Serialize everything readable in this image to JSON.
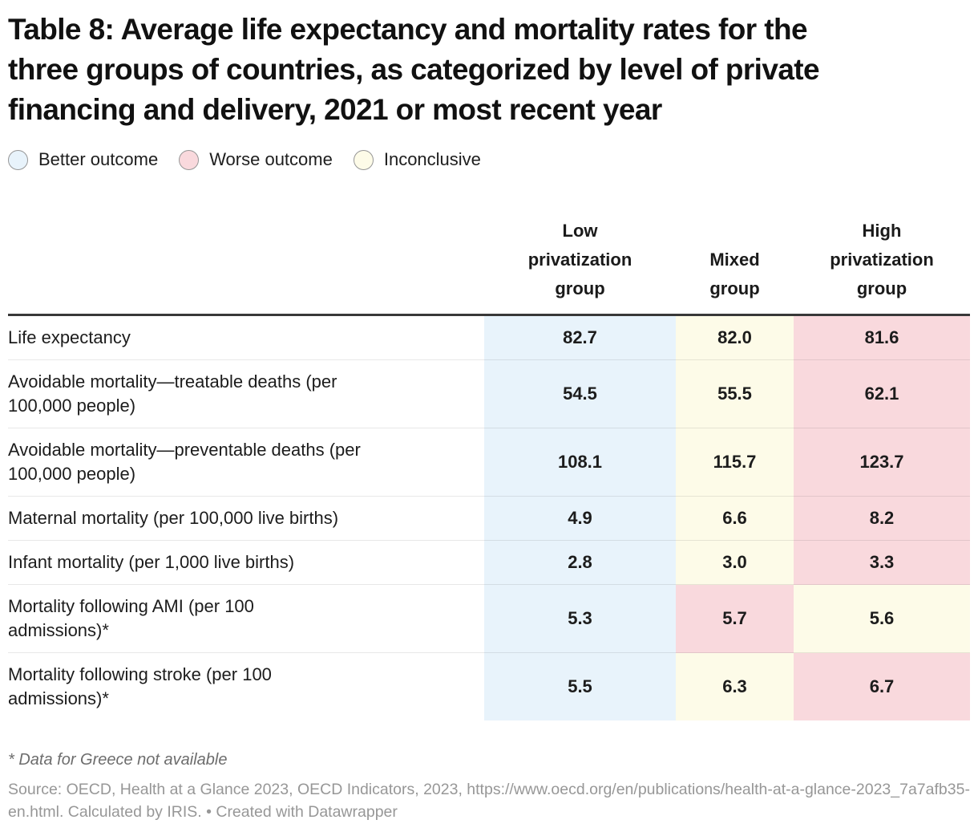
{
  "colors": {
    "better": "#e8f3fb",
    "worse": "#f9d9dd",
    "inconclusive": "#fdfbe8",
    "legend_swatch_border": "#969696",
    "header_rule": "#383838"
  },
  "legend": {
    "items": [
      {
        "key": "better",
        "label": "Better outcome"
      },
      {
        "key": "worse",
        "label": "Worse outcome"
      },
      {
        "key": "inconclusive",
        "label": "Inconclusive"
      }
    ]
  },
  "chart_data": {
    "type": "table",
    "title": "Table 8: Average life expectancy and mortality rates for the three groups of countries, as categorized by level of private financing and delivery, 2021 or most recent year",
    "title_display": "Table 8: Average life expectancy and mortality rates for the\nthree groups of countries, as categorized by level of private\nfinancing and delivery, 2021 or most recent year",
    "columns": [
      "Low privatization group",
      "Mixed group",
      "High privatization group"
    ],
    "columns_display": [
      "Low\nprivatization\ngroup",
      "Mixed\ngroup",
      "High\nprivatization\ngroup"
    ],
    "legend_meaning": {
      "better": "Better outcome",
      "worse": "Worse outcome",
      "inconclusive": "Inconclusive"
    },
    "rows": [
      {
        "label": "Life expectancy",
        "label_display": "Life expectancy",
        "values": [
          82.7,
          82.0,
          81.6
        ],
        "display": [
          "82.7",
          "82.0",
          "81.6"
        ],
        "outcomes": [
          "better",
          "inconclusive",
          "worse"
        ]
      },
      {
        "label": "Avoidable mortality—treatable deaths (per 100,000 people)",
        "label_display": "Avoidable mortality—treatable deaths (per\n100,000 people)",
        "values": [
          54.5,
          55.5,
          62.1
        ],
        "display": [
          "54.5",
          "55.5",
          "62.1"
        ],
        "outcomes": [
          "better",
          "inconclusive",
          "worse"
        ]
      },
      {
        "label": "Avoidable mortality—preventable deaths (per 100,000 people)",
        "label_display": "Avoidable mortality—preventable deaths (per\n100,000 people)",
        "values": [
          108.1,
          115.7,
          123.7
        ],
        "display": [
          "108.1",
          "115.7",
          "123.7"
        ],
        "outcomes": [
          "better",
          "inconclusive",
          "worse"
        ]
      },
      {
        "label": "Maternal mortality (per 100,000 live births)",
        "label_display": "Maternal mortality (per 100,000 live births)",
        "values": [
          4.9,
          6.6,
          8.2
        ],
        "display": [
          "4.9",
          "6.6",
          "8.2"
        ],
        "outcomes": [
          "better",
          "inconclusive",
          "worse"
        ]
      },
      {
        "label": "Infant mortality (per 1,000 live births)",
        "label_display": "Infant mortality (per 1,000 live births)",
        "values": [
          2.8,
          3.0,
          3.3
        ],
        "display": [
          "2.8",
          "3.0",
          "3.3"
        ],
        "outcomes": [
          "better",
          "inconclusive",
          "worse"
        ]
      },
      {
        "label": "Mortality following AMI (per 100 admissions)*",
        "label_display": "Mortality following AMI (per 100\nadmissions)*",
        "values": [
          5.3,
          5.7,
          5.6
        ],
        "display": [
          "5.3",
          "5.7",
          "5.6"
        ],
        "outcomes": [
          "better",
          "worse",
          "inconclusive"
        ]
      },
      {
        "label": "Mortality following stroke (per 100 admissions)*",
        "label_display": "Mortality following stroke (per 100\nadmissions)*",
        "values": [
          5.5,
          6.3,
          6.7
        ],
        "display": [
          "5.5",
          "6.3",
          "6.7"
        ],
        "outcomes": [
          "better",
          "inconclusive",
          "worse"
        ]
      }
    ],
    "footnote": "* Data for Greece not available",
    "source": "Source: OECD, Health at a Glance 2023, OECD Indicators, 2023, https://www.oecd.org/en/publications/health-at-a-glance-2023_7a7afb35-en.html. Calculated by IRIS. • Created with Datawrapper"
  }
}
